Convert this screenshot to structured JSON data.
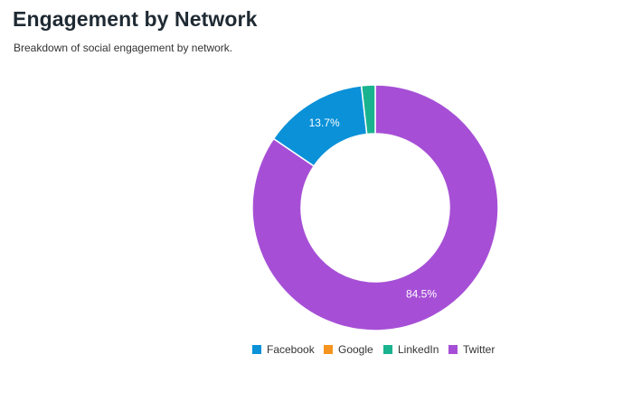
{
  "header": {
    "title": "Engagement by Network",
    "subtitle": "Breakdown of social engagement by network."
  },
  "chart_data": {
    "type": "pie",
    "style": "donut",
    "title": "Engagement by Network",
    "subtitle": "Breakdown of social engagement by network.",
    "legend_position": "bottom",
    "series": [
      {
        "name": "Facebook",
        "value": 13.7,
        "label": "13.7%",
        "color": "#0a91d8"
      },
      {
        "name": "Google",
        "value": 0.0,
        "label": "",
        "color": "#f5941e"
      },
      {
        "name": "LinkedIn",
        "value": 1.8,
        "label": "",
        "color": "#1ab38f"
      },
      {
        "name": "Twitter",
        "value": 84.5,
        "label": "84.5%",
        "color": "#a64fd6"
      }
    ]
  }
}
